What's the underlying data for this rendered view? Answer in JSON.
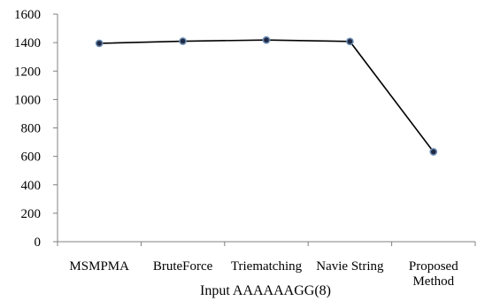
{
  "chart_data": {
    "type": "line",
    "categories": [
      [
        "MSMPMA"
      ],
      [
        "BruteForce"
      ],
      [
        "Triematching"
      ],
      [
        "Navie String"
      ],
      [
        "Proposed",
        "Method"
      ]
    ],
    "series": [
      {
        "values": [
          1395,
          1410,
          1418,
          1408,
          632
        ]
      }
    ],
    "xlabel": "Input AAAAAAGG(8)",
    "ylabel": "",
    "ylim": [
      0,
      1600
    ],
    "yticks": [
      0,
      200,
      400,
      600,
      800,
      1000,
      1200,
      1400,
      1600
    ],
    "grid": false,
    "legend": "none",
    "line_color": "#000000",
    "marker_fill": "#1f2a44",
    "marker_stroke": "#6f8fb5"
  }
}
